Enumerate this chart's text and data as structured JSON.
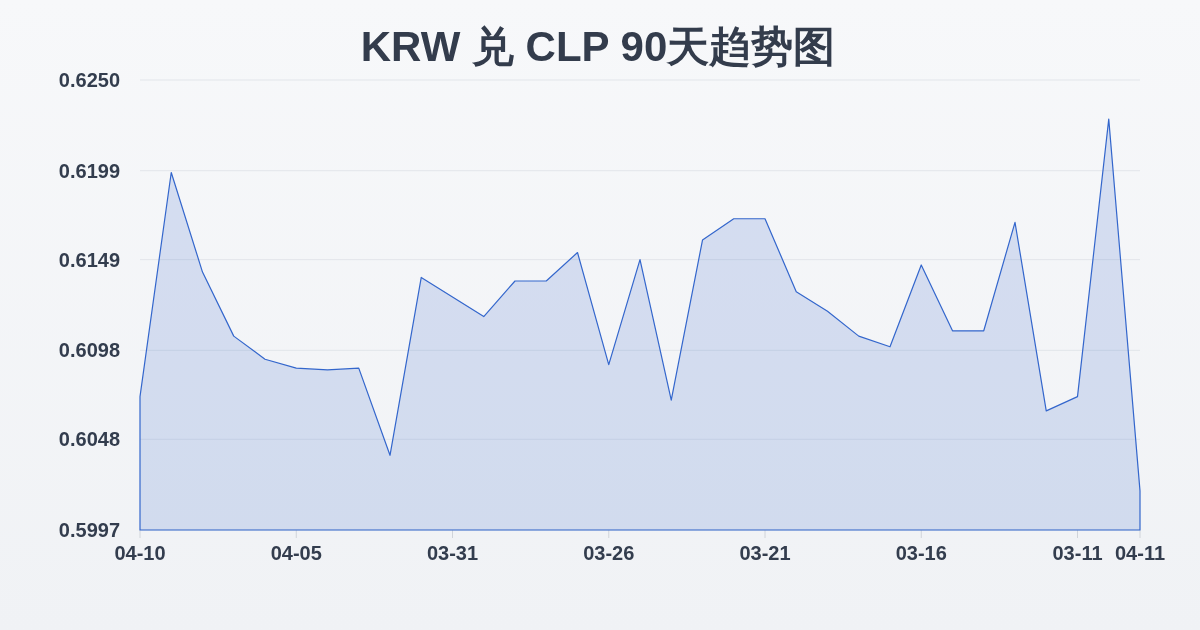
{
  "chart_data": {
    "type": "area",
    "title": "KRW 兑 CLP 90天趋势图",
    "categories": [
      "04-10",
      null,
      null,
      null,
      null,
      "04-05",
      null,
      null,
      null,
      null,
      "03-31",
      null,
      null,
      null,
      null,
      "03-26",
      null,
      null,
      null,
      null,
      "03-21",
      null,
      null,
      null,
      null,
      "03-16",
      null,
      null,
      null,
      null,
      "03-11",
      null,
      "04-11"
    ],
    "series": [
      {
        "color": "#3366cc",
        "values": [
          0.6072,
          0.6198,
          0.6142,
          0.6106,
          0.6093,
          0.6088,
          0.6087,
          0.6088,
          0.6039,
          0.6139,
          0.6128,
          0.6117,
          0.6137,
          0.6137,
          0.6153,
          0.609,
          0.6149,
          0.607,
          0.616,
          0.6172,
          0.6172,
          0.6131,
          0.612,
          0.6106,
          0.61,
          0.6146,
          0.6109,
          0.6109,
          0.617,
          0.6064,
          0.6072,
          0.6228,
          0.6019
        ]
      }
    ],
    "ylim": [
      0.5997,
      0.625
    ],
    "yticks": [
      0.5997,
      0.6048,
      0.6098,
      0.6149,
      0.6199,
      {
        "value": 0.625,
        "label": "0.6250"
      }
    ],
    "grid": "y"
  }
}
